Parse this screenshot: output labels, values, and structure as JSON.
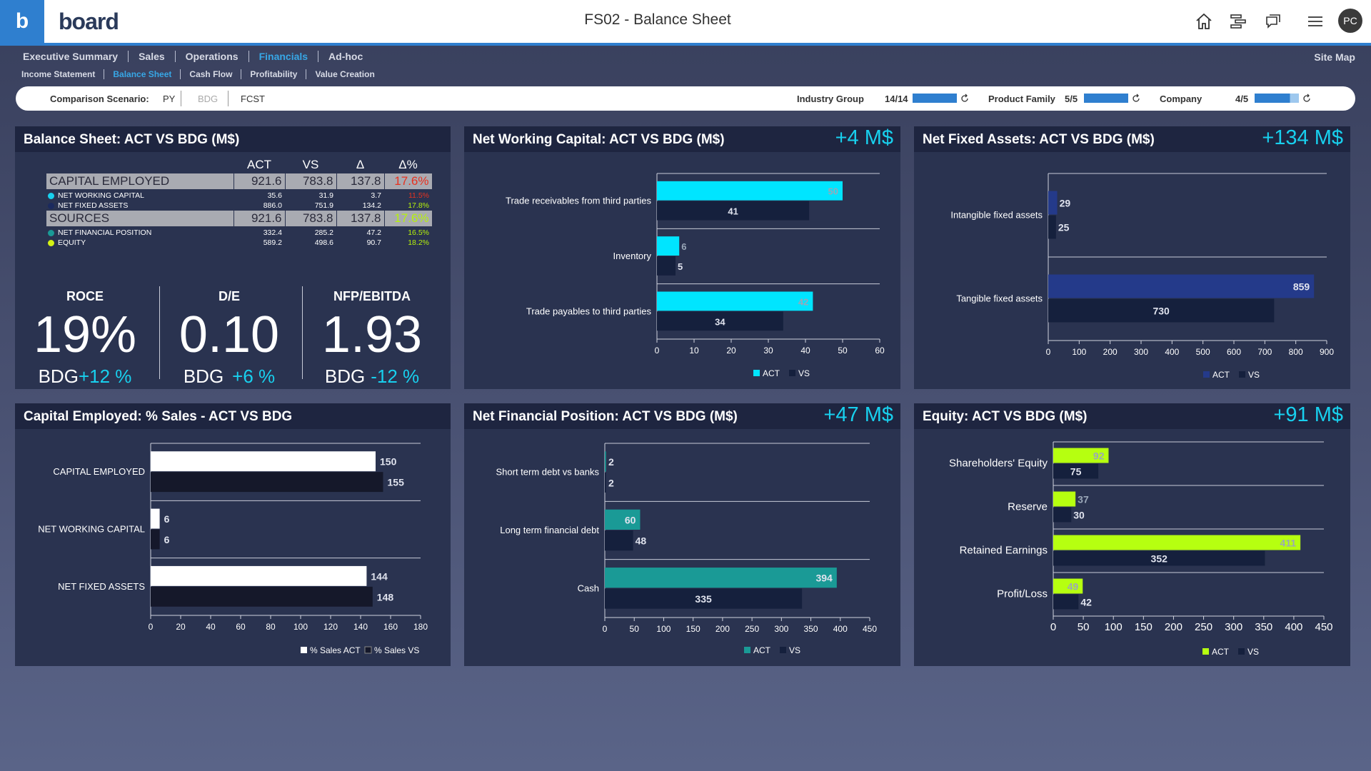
{
  "app": {
    "logo_letter": "b",
    "brand": "board",
    "title": "FS02 - Balance Sheet",
    "user_initials": "PC"
  },
  "nav": {
    "main": [
      {
        "label": "Executive Summary",
        "active": false
      },
      {
        "label": "Sales",
        "active": false
      },
      {
        "label": "Operations",
        "active": false
      },
      {
        "label": "Financials",
        "active": true
      },
      {
        "label": "Ad-hoc",
        "active": false
      }
    ],
    "sub": [
      {
        "label": "Income Statement",
        "active": false
      },
      {
        "label": "Balance Sheet",
        "active": true
      },
      {
        "label": "Cash Flow",
        "active": false
      },
      {
        "label": "Profitability",
        "active": false
      },
      {
        "label": "Value Creation",
        "active": false
      }
    ],
    "site_map": "Site Map"
  },
  "filters": {
    "comparison_label": "Comparison Scenario:",
    "scenarios": [
      "PY",
      "BDG",
      "FCST"
    ],
    "industry_group": {
      "label": "Industry Group",
      "count": "14/14",
      "fill": 1.0
    },
    "product_family": {
      "label": "Product Family",
      "count": "5/5",
      "fill": 1.0
    },
    "company": {
      "label": "Company",
      "count": "4/5",
      "fill": 0.8
    }
  },
  "balance_table": {
    "title": "Balance Sheet: ACT VS BDG (M$)",
    "headers": [
      "ACT",
      "VS",
      "Δ",
      "Δ%"
    ],
    "rows": [
      {
        "label": "CAPITAL EMPLOYED",
        "group": true,
        "dot": "",
        "act": "921.6",
        "vs": "783.8",
        "delta": "137.8",
        "pct": "17.6%",
        "pct_color": "#e8321f"
      },
      {
        "label": "NET WORKING CAPITAL",
        "group": false,
        "dot": "#18d0ee",
        "act": "35.6",
        "vs": "31.9",
        "delta": "3.7",
        "pct": "11.5%",
        "pct_color": "#e8321f"
      },
      {
        "label": "NET FIXED ASSETS",
        "group": false,
        "dot": "#1b2a5e",
        "act": "886.0",
        "vs": "751.9",
        "delta": "134.2",
        "pct": "17.8%",
        "pct_color": "#b6f20a"
      },
      {
        "label": "SOURCES",
        "group": true,
        "dot": "",
        "act": "921.6",
        "vs": "783.8",
        "delta": "137.8",
        "pct": "17.6%",
        "pct_color": "#b6f20a"
      },
      {
        "label": "NET FINANCIAL POSITION",
        "group": false,
        "dot": "#1a9a96",
        "act": "332.4",
        "vs": "285.2",
        "delta": "47.2",
        "pct": "16.5%",
        "pct_color": "#b6f20a"
      },
      {
        "label": "EQUITY",
        "group": false,
        "dot": "#d4f214",
        "act": "589.2",
        "vs": "498.6",
        "delta": "90.7",
        "pct": "18.2%",
        "pct_color": "#b6f20a"
      }
    ],
    "kpis": [
      {
        "title": "ROCE",
        "value": "19%",
        "bdg": "BDG",
        "delta": "+12 %"
      },
      {
        "title": "D/E",
        "value": "0.10",
        "bdg": "BDG",
        "delta": "+6 %"
      },
      {
        "title": "NFP/EBITDA",
        "value": "1.93",
        "bdg": "BDG",
        "delta": "-12 %"
      }
    ]
  },
  "panels": {
    "nwc": {
      "title": "Net Working Capital: ACT VS BDG (M$)",
      "delta": "+4 M$"
    },
    "nfa": {
      "title": "Net Fixed Assets: ACT VS BDG (M$)",
      "delta": "+134 M$"
    },
    "ce": {
      "title": "Capital Employed: % Sales - ACT VS BDG",
      "delta": ""
    },
    "nfp": {
      "title": "Net Financial Position: ACT VS BDG (M$)",
      "delta": "+47 M$"
    },
    "eq": {
      "title": "Equity: ACT VS BDG (M$)",
      "delta": "+91 M$"
    }
  },
  "chart_data": [
    {
      "id": "nwc",
      "type": "bar",
      "orientation": "horizontal",
      "categories": [
        "Trade receivables from third parties",
        "Inventory",
        "Trade payables to third parties"
      ],
      "series": [
        {
          "name": "ACT",
          "values": [
            50,
            6,
            42
          ],
          "color": "#00e5ff"
        },
        {
          "name": "VS",
          "values": [
            41,
            5,
            34
          ],
          "color": "#15203d"
        }
      ],
      "xlim": [
        0,
        60
      ],
      "ticks": [
        0,
        10,
        20,
        30,
        40,
        50,
        60
      ],
      "legend": "bottom"
    },
    {
      "id": "nfa",
      "type": "bar",
      "orientation": "horizontal",
      "categories": [
        "Intangible fixed assets",
        "Tangible fixed assets"
      ],
      "series": [
        {
          "name": "ACT",
          "values": [
            29,
            859
          ],
          "color": "#243a8a"
        },
        {
          "name": "VS",
          "values": [
            25,
            730
          ],
          "color": "#15203d"
        }
      ],
      "xlim": [
        0,
        900
      ],
      "ticks": [
        0,
        100,
        200,
        300,
        400,
        500,
        600,
        700,
        800,
        900
      ],
      "legend": "bottom"
    },
    {
      "id": "ce",
      "type": "bar",
      "orientation": "horizontal",
      "categories": [
        "CAPITAL EMPLOYED",
        "NET WORKING CAPITAL",
        "NET FIXED ASSETS"
      ],
      "series": [
        {
          "name": "% Sales ACT",
          "values": [
            150,
            6,
            144
          ],
          "color": "#ffffff"
        },
        {
          "name": "% Sales VS",
          "values": [
            155,
            6,
            148
          ],
          "color": "#15182a"
        }
      ],
      "xlim": [
        0,
        180
      ],
      "ticks": [
        0,
        20,
        40,
        60,
        80,
        100,
        120,
        140,
        160,
        180
      ],
      "legend": "bottom-right"
    },
    {
      "id": "nfp",
      "type": "bar",
      "orientation": "horizontal",
      "categories": [
        "Short term debt vs banks",
        "Long term financial debt",
        "Cash"
      ],
      "series": [
        {
          "name": "ACT",
          "values": [
            2,
            60,
            394
          ],
          "color": "#1a9a96"
        },
        {
          "name": "VS",
          "values": [
            2,
            48,
            335
          ],
          "color": "#15203d"
        }
      ],
      "xlim": [
        0,
        450
      ],
      "ticks": [
        0,
        50,
        100,
        150,
        200,
        250,
        300,
        350,
        400,
        450
      ],
      "legend": "bottom"
    },
    {
      "id": "eq",
      "type": "bar",
      "orientation": "horizontal",
      "categories": [
        "Shareholders' Equity",
        "Reserve",
        "Retained Earnings",
        "Profit/Loss"
      ],
      "series": [
        {
          "name": "ACT",
          "values": [
            92,
            37,
            411,
            49
          ],
          "color": "#b6ff10"
        },
        {
          "name": "VS",
          "values": [
            75,
            30,
            352,
            42
          ],
          "color": "#15203d"
        }
      ],
      "xlim": [
        0,
        450
      ],
      "ticks": [
        0,
        50,
        100,
        150,
        200,
        250,
        300,
        350,
        400,
        450
      ],
      "legend": "bottom"
    }
  ]
}
